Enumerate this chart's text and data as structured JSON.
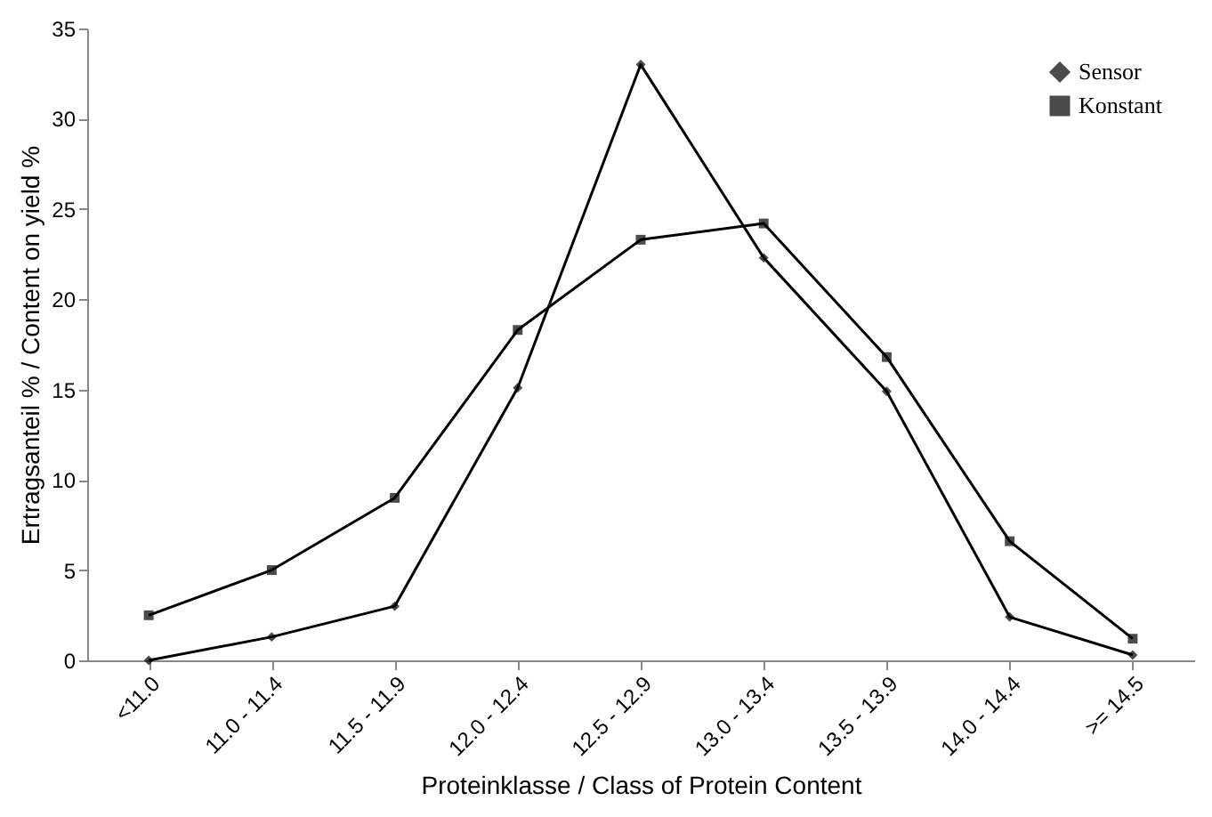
{
  "chart_data": {
    "type": "line",
    "xlabel": "Proteinklasse / Class of Protein Content",
    "ylabel": "Ertragsanteil % / Content on yield %",
    "categories": [
      "<11.0",
      "11.0 - 11.4",
      "11.5 - 11.9",
      "12.0 - 12.4",
      "12.5 - 12.9",
      "13.0 - 13.4",
      "13.5 - 13.9",
      "14.0 - 14.4",
      ">= 14.5"
    ],
    "series": [
      {
        "name": "Sensor",
        "color": "#000000",
        "marker": "diamond",
        "values": [
          0,
          1.3,
          3.0,
          15.1,
          33.0,
          22.3,
          14.9,
          2.4,
          0.3
        ]
      },
      {
        "name": "Konstant",
        "color": "#000000",
        "marker": "square",
        "values": [
          2.5,
          5.0,
          9.0,
          18.3,
          23.3,
          24.2,
          16.8,
          6.6,
          1.2
        ]
      }
    ],
    "ylim": [
      0,
      35
    ],
    "yticks": [
      0,
      5,
      10,
      15,
      20,
      25,
      30,
      35
    ],
    "grid": false,
    "legend": "top right"
  }
}
